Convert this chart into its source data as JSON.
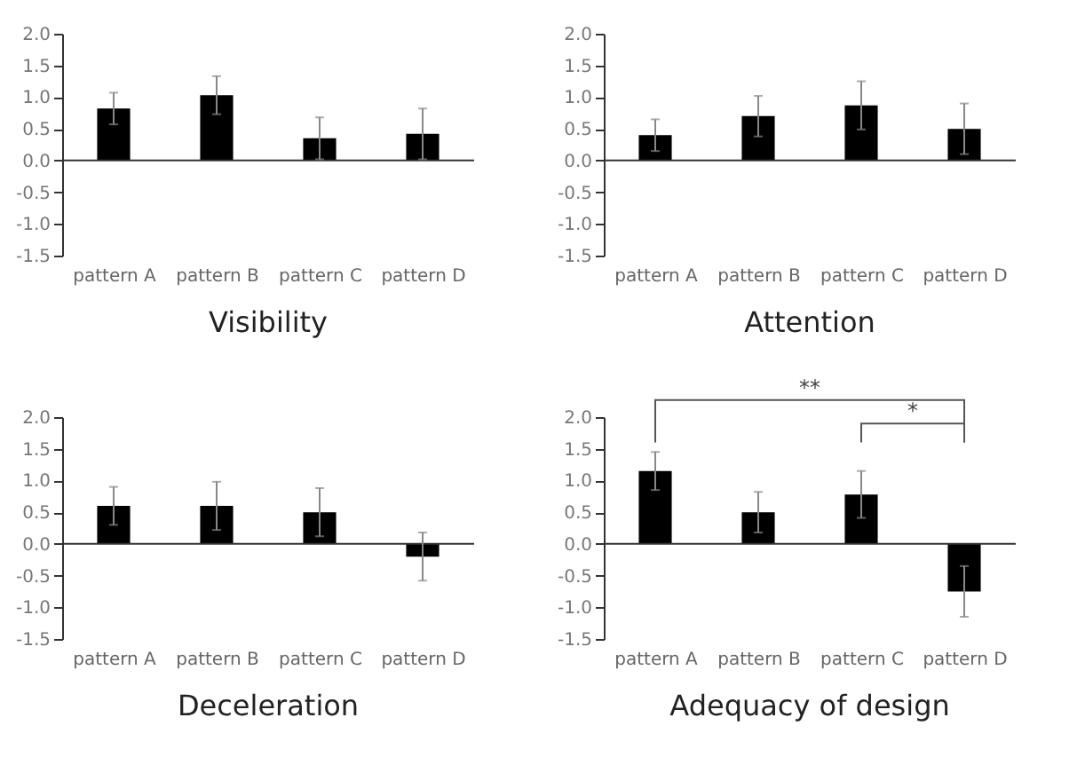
{
  "chart_data": [
    {
      "type": "bar",
      "title": "Visibility",
      "categories": [
        "pattern A",
        "pattern B",
        "pattern C",
        "pattern D"
      ],
      "values": [
        0.82,
        1.03,
        0.35,
        0.42
      ],
      "errors": [
        0.25,
        0.3,
        0.33,
        0.4
      ],
      "color": "#000000",
      "ylim": [
        -1.5,
        2.0
      ],
      "yticks": [
        {
          "value": -1.5,
          "label": "-1.5"
        },
        {
          "value": -1,
          "label": "-1.0"
        },
        {
          "value": -0.5,
          "label": "-0.5"
        },
        {
          "value": 0,
          "label": "0.0"
        },
        {
          "value": 0.5,
          "label": "0.5"
        },
        {
          "value": 1,
          "label": "1.0"
        },
        {
          "value": 1.5,
          "label": "1.5"
        },
        {
          "value": 2,
          "label": "2.0"
        }
      ]
    },
    {
      "type": "bar",
      "title": "Attention",
      "categories": [
        "pattern A",
        "pattern B",
        "pattern C",
        "pattern D"
      ],
      "values": [
        0.4,
        0.7,
        0.87,
        0.5
      ],
      "errors": [
        0.25,
        0.32,
        0.38,
        0.4
      ],
      "color": "#000000",
      "ylim": [
        -1.5,
        2.0
      ],
      "yticks": [
        {
          "value": -1.5,
          "label": "-1.5"
        },
        {
          "value": -1,
          "label": "-1.0"
        },
        {
          "value": -0.5,
          "label": "-0.5"
        },
        {
          "value": 0,
          "label": "0.0"
        },
        {
          "value": 0.5,
          "label": "0.5"
        },
        {
          "value": 1,
          "label": "1.0"
        },
        {
          "value": 1.5,
          "label": "1.5"
        },
        {
          "value": 2,
          "label": "2.0"
        }
      ]
    },
    {
      "type": "bar",
      "title": "Deceleration",
      "categories": [
        "pattern A",
        "pattern B",
        "pattern C",
        "pattern D"
      ],
      "values": [
        0.6,
        0.6,
        0.5,
        -0.2
      ],
      "errors": [
        0.3,
        0.38,
        0.38,
        0.38
      ],
      "color": "#000000",
      "ylim": [
        -1.5,
        2.0
      ],
      "yticks": [
        {
          "value": -1.5,
          "label": "-1.5"
        },
        {
          "value": -1,
          "label": "-1.0"
        },
        {
          "value": -0.5,
          "label": "-0.5"
        },
        {
          "value": 0,
          "label": "0.0"
        },
        {
          "value": 0.5,
          "label": "0.5"
        },
        {
          "value": 1,
          "label": "1.0"
        },
        {
          "value": 1.5,
          "label": "1.5"
        },
        {
          "value": 2,
          "label": "2.0"
        }
      ]
    },
    {
      "type": "bar",
      "title": "Adequacy of design",
      "categories": [
        "pattern A",
        "pattern B",
        "pattern C",
        "pattern D"
      ],
      "values": [
        1.15,
        0.5,
        0.78,
        -0.75
      ],
      "errors": [
        0.3,
        0.32,
        0.37,
        0.4
      ],
      "color": "#000000",
      "ylim": [
        -1.5,
        2.0
      ],
      "yticks": [
        {
          "value": -1.5,
          "label": "-1.5"
        },
        {
          "value": -1,
          "label": "-1.0"
        },
        {
          "value": -0.5,
          "label": "-0.5"
        },
        {
          "value": 0,
          "label": "0.0"
        },
        {
          "value": 0.5,
          "label": "0.5"
        },
        {
          "value": 1,
          "label": "1.0"
        },
        {
          "value": 1.5,
          "label": "1.5"
        },
        {
          "value": 2,
          "label": "2.0"
        }
      ],
      "annotations": [
        "**",
        "*"
      ]
    }
  ]
}
